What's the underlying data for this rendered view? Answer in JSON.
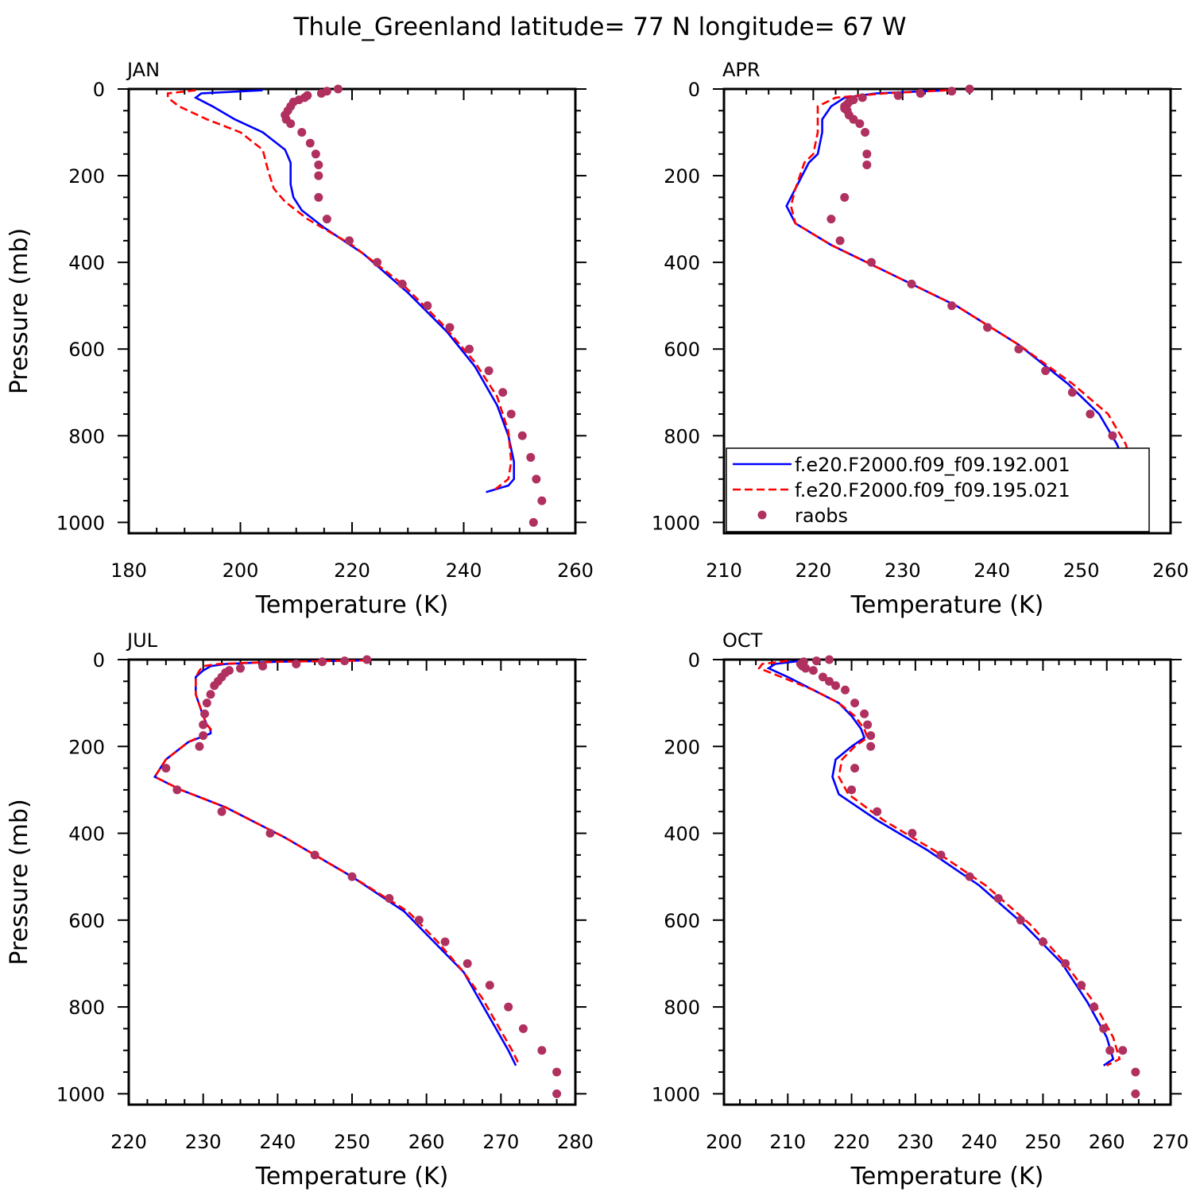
{
  "title": "Thule_Greenland  latitude= 77 N longitude= 67 W",
  "legend": {
    "placement": "bottom-right of APR panel",
    "entries": [
      {
        "label": "f.e20.F2000.f09_f09.192.001",
        "color": "#0000ff",
        "style": "solid"
      },
      {
        "label": "f.e20.F2000.f09_f09.195.021",
        "color": "#ff0000",
        "style": "dashed"
      },
      {
        "label": "raobs",
        "color": "#b03060",
        "style": "dots"
      }
    ]
  },
  "chart_data": [
    {
      "type": "line",
      "panel_label": "JAN",
      "xlabel": "Temperature (K)",
      "ylabel": "Pressure (mb)",
      "xlim": [
        180,
        260
      ],
      "ylim": [
        1025,
        0
      ],
      "xticks": [
        180,
        200,
        220,
        240,
        260
      ],
      "yticks": [
        0,
        200,
        400,
        600,
        800,
        1000
      ],
      "series": [
        {
          "name": "f.e20.F2000.f09_f09.192.001",
          "color": "#0000ff",
          "style": "solid",
          "x": [
            204,
            193,
            192,
            195,
            199,
            204,
            208,
            209,
            209,
            209.5,
            211,
            215,
            222,
            230,
            237,
            242,
            246,
            248,
            249,
            249,
            248,
            244
          ],
          "y": [
            3,
            10,
            20,
            40,
            70,
            100,
            140,
            170,
            220,
            250,
            280,
            320,
            380,
            470,
            560,
            640,
            730,
            800,
            860,
            900,
            915,
            930
          ]
        },
        {
          "name": "f.e20.F2000.f09_f09.195.021",
          "color": "#ff0000",
          "style": "dashed",
          "x": [
            192,
            187,
            187,
            189,
            194,
            200,
            204,
            205,
            206,
            208,
            212,
            220,
            229,
            236,
            242,
            246,
            248,
            248.5,
            248,
            245
          ],
          "y": [
            3,
            10,
            20,
            40,
            70,
            100,
            140,
            190,
            230,
            260,
            300,
            360,
            450,
            540,
            630,
            710,
            790,
            860,
            900,
            930
          ]
        },
        {
          "name": "raobs",
          "color": "#b03060",
          "style": "dots",
          "x": [
            217.5,
            215.5,
            214.5,
            212,
            211.5,
            210.5,
            209.5,
            209,
            208.5,
            208,
            208.2,
            209,
            211,
            212.5,
            213.5,
            214,
            214,
            214,
            215.5,
            219.5,
            224.5,
            229,
            233.5,
            237.5,
            241,
            244.5,
            247,
            248.5,
            250.5,
            252,
            253,
            254,
            252.5
          ],
          "y": [
            0,
            5,
            10,
            15,
            20,
            25,
            30,
            40,
            50,
            60,
            70,
            80,
            100,
            125,
            150,
            175,
            200,
            250,
            300,
            350,
            400,
            450,
            500,
            550,
            600,
            650,
            700,
            750,
            800,
            850,
            900,
            950,
            1000
          ]
        }
      ]
    },
    {
      "type": "line",
      "panel_label": "APR",
      "xlabel": "Temperature (K)",
      "ylabel": "",
      "xlim": [
        210,
        260
      ],
      "ylim": [
        1025,
        0
      ],
      "xticks": [
        210,
        220,
        230,
        240,
        250,
        260
      ],
      "yticks": [
        0,
        200,
        400,
        600,
        800,
        1000
      ],
      "series": [
        {
          "name": "f.e20.F2000.f09_f09.192.001",
          "color": "#0000ff",
          "style": "solid",
          "x": [
            235,
            227,
            223.5,
            222,
            221,
            221,
            220.5,
            219.5,
            218,
            217,
            218,
            222,
            229,
            236,
            243,
            248.5,
            252,
            254,
            255,
            254.5,
            252.5
          ],
          "y": [
            3,
            10,
            20,
            40,
            70,
            100,
            150,
            170,
            230,
            270,
            310,
            360,
            430,
            500,
            590,
            680,
            750,
            820,
            870,
            910,
            930
          ]
        },
        {
          "name": "f.e20.F2000.f09_f09.195.021",
          "color": "#ff0000",
          "style": "dashed",
          "x": [
            235,
            228,
            222.5,
            220.5,
            220.5,
            220.5,
            220,
            219,
            218,
            217.5,
            218,
            222,
            229,
            236,
            243,
            249,
            253,
            255,
            255.5,
            255,
            253
          ],
          "y": [
            3,
            10,
            20,
            40,
            70,
            100,
            150,
            170,
            230,
            270,
            310,
            360,
            430,
            500,
            590,
            680,
            750,
            820,
            870,
            910,
            930
          ]
        },
        {
          "name": "raobs",
          "color": "#b03060",
          "style": "dots",
          "x": [
            237.5,
            235.5,
            232,
            229.5,
            225.5,
            224.5,
            224,
            223.8,
            223.5,
            223.5,
            223.8,
            224,
            224.5,
            225.2,
            225.8,
            226,
            226,
            223.5,
            222,
            223,
            226.5,
            231,
            235.5,
            239.5,
            243,
            246,
            249,
            251,
            253.5,
            255,
            256.5,
            257,
            257
          ],
          "y": [
            0,
            5,
            10,
            15,
            20,
            25,
            30,
            35,
            40,
            45,
            50,
            60,
            70,
            80,
            100,
            150,
            175,
            250,
            300,
            350,
            400,
            450,
            500,
            550,
            600,
            650,
            700,
            750,
            800,
            850,
            900,
            950,
            1000
          ]
        }
      ]
    },
    {
      "type": "line",
      "panel_label": "JUL",
      "xlabel": "Temperature (K)",
      "ylabel": "Pressure (mb)",
      "xlim": [
        220,
        280
      ],
      "ylim": [
        1025,
        0
      ],
      "xticks": [
        220,
        230,
        240,
        250,
        260,
        270,
        280
      ],
      "yticks": [
        0,
        200,
        400,
        600,
        800,
        1000
      ],
      "series": [
        {
          "name": "f.e20.F2000.f09_f09.192.001",
          "color": "#0000ff",
          "style": "solid",
          "x": [
            252,
            240,
            233,
            231,
            230,
            229,
            229,
            230,
            230.5,
            231,
            231,
            228,
            225,
            223.5,
            227,
            233,
            241,
            250,
            257,
            261,
            265,
            267,
            269,
            271,
            272
          ],
          "y": [
            2,
            5,
            10,
            15,
            25,
            40,
            80,
            130,
            150,
            160,
            170,
            190,
            230,
            270,
            300,
            340,
            410,
            500,
            580,
            650,
            720,
            780,
            840,
            900,
            935
          ]
        },
        {
          "name": "f.e20.F2000.f09_f09.195.021",
          "color": "#ff0000",
          "style": "dashed",
          "x": [
            252,
            240,
            232,
            230,
            229.5,
            229,
            229,
            230,
            230.5,
            231,
            230.5,
            228,
            225,
            223.5,
            227,
            233,
            241,
            250,
            257.5,
            261.5,
            265,
            267.5,
            269.5,
            271.5,
            272.5
          ],
          "y": [
            2,
            5,
            10,
            15,
            25,
            40,
            80,
            130,
            150,
            160,
            170,
            190,
            230,
            270,
            300,
            340,
            410,
            500,
            580,
            650,
            720,
            780,
            840,
            900,
            935
          ]
        },
        {
          "name": "raobs",
          "color": "#b03060",
          "style": "dots",
          "x": [
            252,
            249,
            246,
            242.5,
            238,
            235,
            233.5,
            233,
            232.5,
            232,
            231.5,
            231,
            230.5,
            230.2,
            230,
            230,
            229.5,
            225,
            226.5,
            232.5,
            239,
            245,
            250,
            255,
            259,
            262.5,
            265.5,
            268.5,
            271,
            273,
            275.5,
            277.5,
            277.5
          ],
          "y": [
            0,
            3,
            5,
            10,
            15,
            20,
            25,
            30,
            40,
            50,
            60,
            80,
            100,
            125,
            150,
            175,
            200,
            250,
            300,
            350,
            400,
            450,
            500,
            550,
            600,
            650,
            700,
            750,
            800,
            850,
            900,
            950,
            1000
          ]
        }
      ]
    },
    {
      "type": "line",
      "panel_label": "OCT",
      "xlabel": "Temperature (K)",
      "ylabel": "",
      "xlim": [
        200,
        270
      ],
      "ylim": [
        1025,
        0
      ],
      "xticks": [
        200,
        210,
        220,
        230,
        240,
        250,
        260,
        270
      ],
      "yticks": [
        0,
        200,
        400,
        600,
        800,
        1000
      ],
      "series": [
        {
          "name": "f.e20.F2000.f09_f09.192.001",
          "color": "#0000ff",
          "style": "solid",
          "x": [
            212,
            208,
            207,
            210,
            214,
            218,
            220,
            221.5,
            222,
            220,
            217.5,
            217,
            218,
            224,
            232,
            240,
            247,
            253,
            257,
            260,
            261,
            259.5
          ],
          "y": [
            3,
            10,
            20,
            40,
            70,
            100,
            130,
            160,
            180,
            200,
            230,
            270,
            310,
            370,
            440,
            520,
            610,
            700,
            790,
            870,
            920,
            935
          ]
        },
        {
          "name": "f.e20.F2000.f09_f09.195.021",
          "color": "#ff0000",
          "style": "dashed",
          "x": [
            210,
            206,
            205.5,
            209,
            214,
            218,
            220.5,
            222,
            222.5,
            220.5,
            218.5,
            218,
            219.5,
            225,
            233,
            241,
            248,
            253.5,
            258,
            261,
            262,
            260
          ],
          "y": [
            3,
            10,
            20,
            40,
            70,
            100,
            130,
            160,
            180,
            200,
            230,
            270,
            310,
            370,
            440,
            520,
            610,
            700,
            790,
            870,
            920,
            935
          ]
        },
        {
          "name": "raobs",
          "color": "#b03060",
          "style": "dots",
          "x": [
            216.5,
            214.5,
            212.5,
            212,
            212.3,
            212.8,
            214,
            215.5,
            216.5,
            217.5,
            219,
            220.5,
            222,
            222.5,
            223,
            223,
            220.5,
            220,
            224,
            229.5,
            234,
            238.5,
            243,
            246.5,
            250,
            253.5,
            256,
            258,
            259.5,
            260.5,
            262.5,
            264.5,
            264.5
          ],
          "y": [
            0,
            3,
            5,
            10,
            15,
            20,
            25,
            40,
            50,
            60,
            70,
            100,
            125,
            150,
            175,
            200,
            250,
            300,
            350,
            400,
            450,
            500,
            550,
            600,
            650,
            700,
            750,
            800,
            850,
            900,
            900,
            950,
            1000
          ]
        }
      ]
    }
  ]
}
